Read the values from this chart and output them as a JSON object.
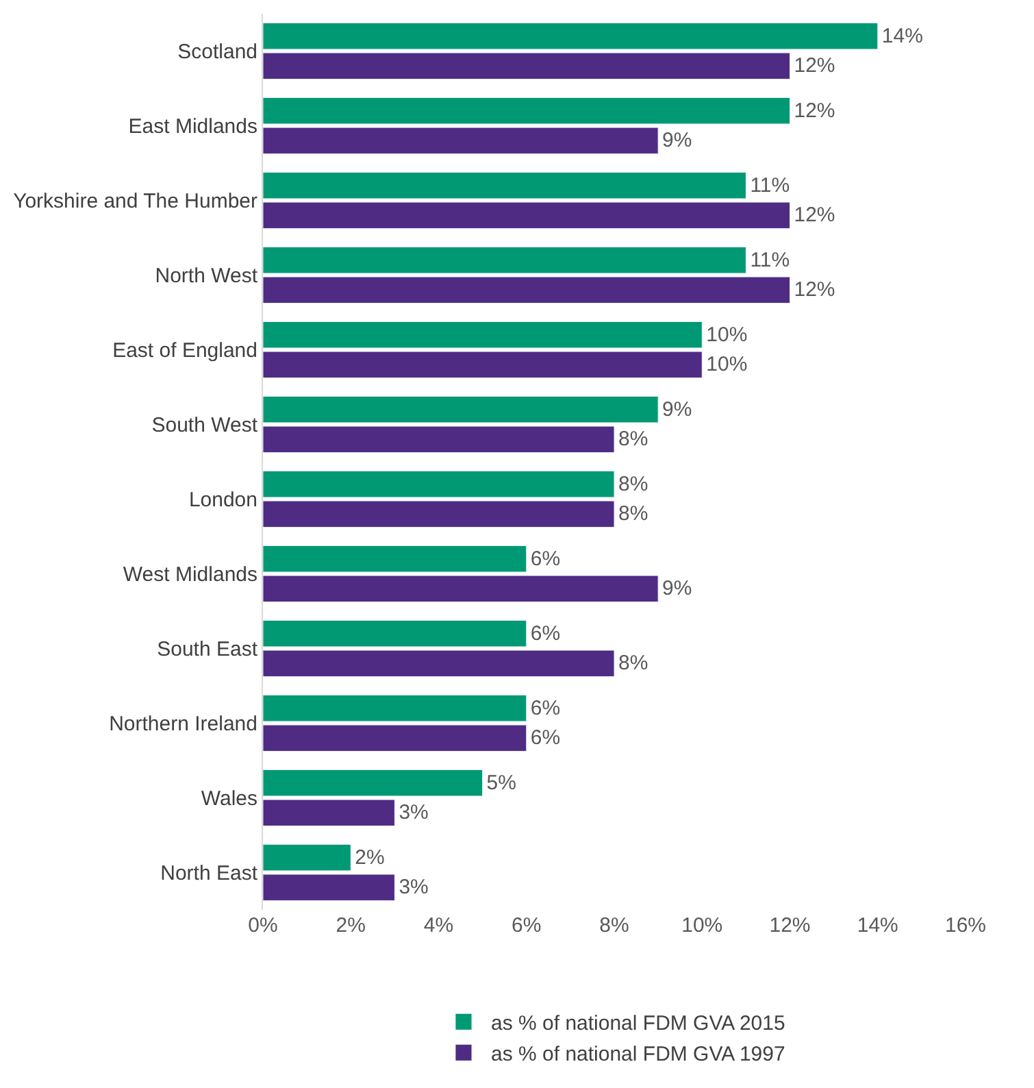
{
  "chart_data": {
    "type": "bar",
    "orientation": "horizontal",
    "categories": [
      "Scotland",
      "East Midlands",
      "Yorkshire and The Humber",
      "North West",
      "East of England",
      "South West",
      "London",
      "West Midlands",
      "South East",
      "Northern Ireland",
      "Wales",
      "North East"
    ],
    "series": [
      {
        "name": "as % of national FDM GVA 2015",
        "color": "#009974",
        "values": [
          14,
          12,
          11,
          11,
          10,
          9,
          8,
          6,
          6,
          6,
          5,
          2
        ],
        "value_labels": [
          "14%",
          "12%",
          "11%",
          "11%",
          "10%",
          "9%",
          "8%",
          "6%",
          "6%",
          "6%",
          "5%",
          "2%"
        ]
      },
      {
        "name": "as % of national FDM GVA 1997",
        "color": "#4f2b83",
        "values": [
          12,
          9,
          12,
          12,
          10,
          8,
          8,
          9,
          8,
          6,
          3,
          3
        ],
        "value_labels": [
          "12%",
          "9%",
          "12%",
          "12%",
          "10%",
          "8%",
          "8%",
          "9%",
          "8%",
          "6%",
          "3%",
          "3%"
        ]
      }
    ],
    "xlim": [
      0,
      16
    ],
    "xticks": [
      {
        "value": 0,
        "label": "0%"
      },
      {
        "value": 2,
        "label": "2%"
      },
      {
        "value": 4,
        "label": "4%"
      },
      {
        "value": 6,
        "label": "6%"
      },
      {
        "value": 8,
        "label": "8%"
      },
      {
        "value": 10,
        "label": "10%"
      },
      {
        "value": 12,
        "label": "12%"
      },
      {
        "value": 14,
        "label": "14%"
      },
      {
        "value": 16,
        "label": "16%"
      }
    ],
    "legend": "bottom"
  }
}
